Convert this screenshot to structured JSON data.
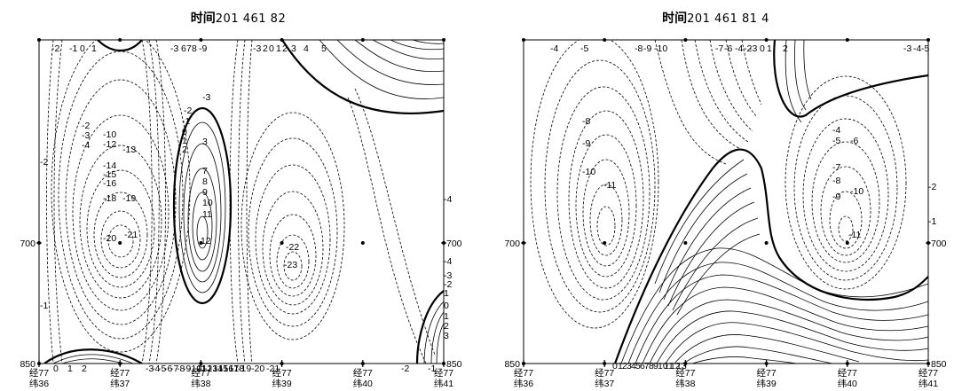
{
  "panels": [
    {
      "title_prefix": "时间",
      "title_value": "20146182",
      "title_display": "201 461 82",
      "y_tick_labels_left": [
        "700",
        "850"
      ],
      "y_tick_labels_right": [
        "700",
        "850"
      ],
      "x_tick_labels": [
        [
          "经77",
          "纬36"
        ],
        [
          "经77",
          "纬37"
        ],
        [
          "经77",
          "纬38"
        ],
        [
          "经77",
          "纬39"
        ],
        [
          "经77",
          "纬40"
        ],
        [
          "经77",
          "纬41"
        ]
      ],
      "contour_labels_top": [
        "-2",
        "-1",
        "0",
        "1",
        "-3",
        "6",
        "7",
        "8",
        "-9",
        "-3",
        "2",
        "0",
        "1",
        "2",
        "3",
        "4",
        "5"
      ],
      "contour_labels_interior": [
        "-2",
        "-3",
        "-4",
        "-10",
        "-12",
        "-13",
        "-14",
        "-15",
        "-16",
        "-18",
        "-19",
        "-20",
        "-21",
        "-3",
        "-2",
        "-1",
        "0",
        "1",
        "2",
        "3",
        "7",
        "8",
        "9",
        "10",
        "11",
        "12",
        "-22",
        "-23",
        "-2",
        "-1",
        "-4",
        "-4",
        "-3",
        "-2",
        "1",
        "0",
        "1",
        "2",
        "3"
      ],
      "contour_labels_bottom": [
        "0",
        "1",
        "2",
        "-3",
        "-4",
        "-5",
        "-6",
        "-7",
        "-8",
        "-9",
        "-10",
        "-11",
        "-12",
        "-13",
        "-14",
        "-15",
        "-16",
        "-17",
        "-18",
        "-19",
        "-20",
        "-21",
        "-2",
        "-1"
      ]
    },
    {
      "title_prefix": "时间",
      "title_value": "201461814",
      "title_display": "201 461 81 4",
      "y_tick_labels_left": [
        "700",
        "850"
      ],
      "y_tick_labels_right": [
        "700",
        "850"
      ],
      "x_tick_labels": [
        [
          "经77",
          "纬36"
        ],
        [
          "经77",
          "纬37"
        ],
        [
          "经77",
          "纬38"
        ],
        [
          "经77",
          "纬39"
        ],
        [
          "经77",
          "纬40"
        ],
        [
          "经77",
          "纬41"
        ]
      ],
      "contour_labels_top": [
        "-4",
        "-5",
        "-8",
        "-9",
        "-10",
        "-7",
        "-6",
        "-4",
        "-2",
        "-3",
        "0",
        "1",
        "2",
        "-3",
        "-4",
        "-5"
      ],
      "contour_labels_interior": [
        "-8",
        "-9",
        "-10",
        "-11",
        "-4",
        "-5",
        "-6",
        "-7",
        "-8",
        "-9",
        "-10",
        "-11",
        "-2",
        "-1"
      ],
      "contour_labels_bottom": [
        "0",
        "1",
        "2",
        "3",
        "4",
        "5",
        "6",
        "7",
        "8",
        "9",
        "10",
        "11",
        "12",
        "13"
      ]
    }
  ],
  "chart_data": [
    {
      "type": "heatmap",
      "title": "时间20146182",
      "x_categories": [
        "经77 纬36",
        "经77 纬37",
        "经77 纬38",
        "经77 纬39",
        "经77 纬40",
        "经77 纬41"
      ],
      "y_levels_shown": [
        700,
        850
      ],
      "y_axis_direction": "pressure increasing downward",
      "contour_style": {
        "negative": "dashed",
        "zero": "bold solid",
        "positive": "solid"
      },
      "extrema": [
        {
          "x": "经77 纬37",
          "y": 700,
          "value": -21,
          "kind": "minimum"
        },
        {
          "x": "经77 纬38",
          "y": 700,
          "value": 12,
          "kind": "maximum"
        },
        {
          "x": "经77 纬39",
          "y": 700,
          "value": -23,
          "kind": "minimum"
        }
      ]
    },
    {
      "type": "heatmap",
      "title": "时间201461814",
      "x_categories": [
        "经77 纬36",
        "经77 纬37",
        "经77 纬38",
        "经77 纬39",
        "经77 纬40",
        "经77 纬41"
      ],
      "y_levels_shown": [
        700,
        850
      ],
      "y_axis_direction": "pressure increasing downward",
      "contour_style": {
        "negative": "dashed",
        "zero": "bold solid",
        "positive": "solid"
      },
      "extrema": [
        {
          "x": "经77 纬37",
          "y": 700,
          "value": -11,
          "kind": "minimum"
        },
        {
          "x": "经77 纬40",
          "y": 700,
          "value": -11,
          "kind": "minimum"
        },
        {
          "x": "经77 纬37",
          "y": 850,
          "value": 13,
          "kind": "maximum"
        }
      ]
    }
  ]
}
